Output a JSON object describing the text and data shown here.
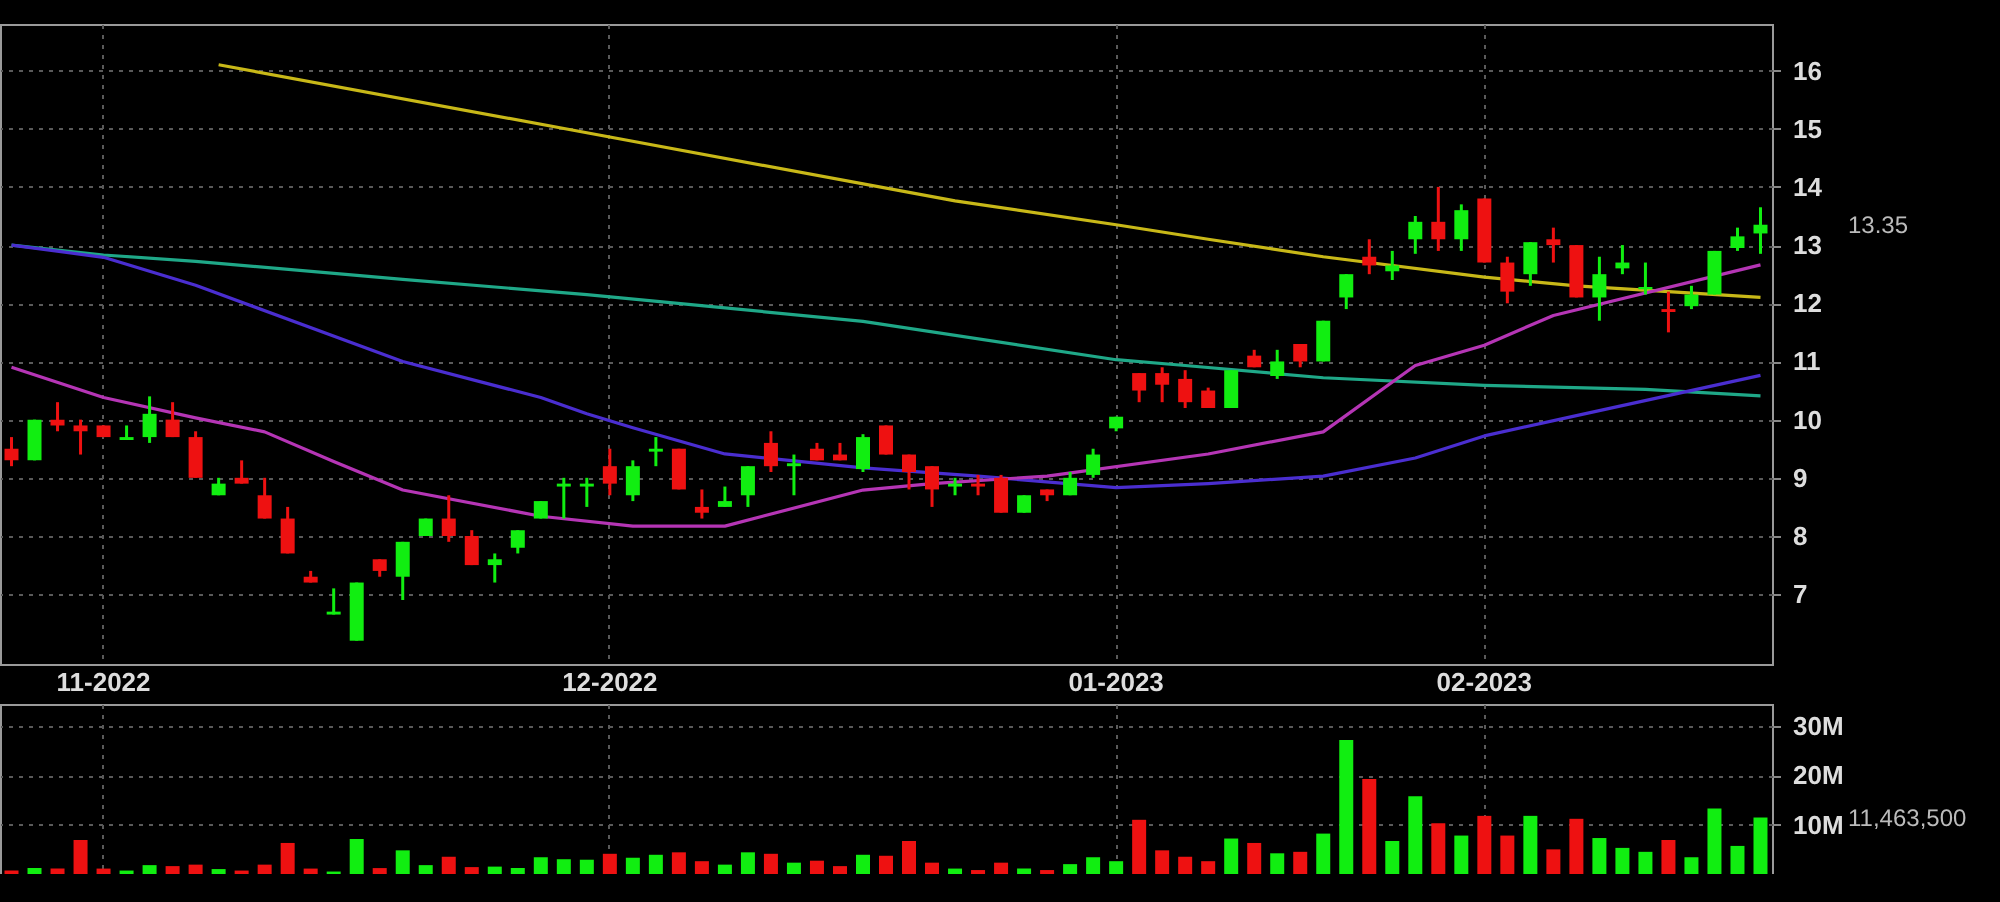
{
  "chart_data": [
    {
      "type": "candlestick",
      "categories": [
        null,
        null,
        null,
        null,
        "11-2022",
        null,
        null,
        null,
        null,
        null,
        null,
        null,
        null,
        null,
        null,
        null,
        null,
        null,
        null,
        null,
        null,
        null,
        null,
        null,
        null,
        null,
        "12-2022",
        null,
        null,
        null,
        null,
        null,
        null,
        null,
        null,
        null,
        null,
        null,
        null,
        null,
        null,
        null,
        null,
        null,
        null,
        null,
        null,
        null,
        "01-2023",
        null,
        null,
        null,
        null,
        null,
        null,
        null,
        null,
        null,
        null,
        null,
        null,
        null,
        null,
        null,
        "02-2023",
        null,
        null,
        null,
        null,
        null,
        null,
        null,
        null,
        null,
        null,
        null,
        null
      ],
      "ohlc": [
        [
          9.5,
          9.7,
          9.2,
          9.3
        ],
        [
          9.3,
          10.0,
          9.3,
          10.0
        ],
        [
          10.0,
          10.3,
          9.8,
          9.9
        ],
        [
          9.9,
          10.0,
          9.4,
          9.8
        ],
        [
          9.9,
          9.9,
          9.7,
          9.7
        ],
        [
          9.65,
          9.9,
          9.65,
          9.7
        ],
        [
          9.7,
          10.4,
          9.6,
          10.1
        ],
        [
          10.0,
          10.3,
          9.7,
          9.7
        ],
        [
          9.7,
          9.8,
          9.0,
          9.0
        ],
        [
          8.7,
          9.0,
          8.7,
          8.9
        ],
        [
          9.0,
          9.3,
          8.9,
          8.9
        ],
        [
          8.7,
          9.0,
          8.3,
          8.3
        ],
        [
          8.3,
          8.5,
          7.7,
          7.7
        ],
        [
          7.3,
          7.4,
          7.2,
          7.2
        ],
        [
          6.65,
          7.1,
          6.65,
          6.7
        ],
        [
          6.2,
          7.2,
          6.2,
          7.2
        ],
        [
          7.6,
          7.6,
          7.3,
          7.4
        ],
        [
          7.3,
          7.9,
          6.9,
          7.9
        ],
        [
          8.0,
          8.3,
          8.0,
          8.3
        ],
        [
          8.3,
          8.7,
          7.9,
          8.0
        ],
        [
          8.0,
          8.1,
          7.5,
          7.5
        ],
        [
          7.5,
          7.7,
          7.2,
          7.6
        ],
        [
          7.8,
          8.1,
          7.7,
          8.1
        ],
        [
          8.3,
          8.6,
          8.3,
          8.6
        ],
        [
          8.85,
          9.0,
          8.3,
          8.9
        ],
        [
          8.85,
          9.0,
          8.5,
          8.9
        ],
        [
          9.2,
          9.5,
          8.7,
          8.9
        ],
        [
          8.7,
          9.3,
          8.6,
          9.2
        ],
        [
          9.45,
          9.7,
          9.2,
          9.5
        ],
        [
          9.5,
          9.5,
          8.8,
          8.8
        ],
        [
          8.5,
          8.8,
          8.3,
          8.4
        ],
        [
          8.5,
          8.85,
          8.5,
          8.6
        ],
        [
          8.7,
          9.2,
          8.5,
          9.2
        ],
        [
          9.6,
          9.8,
          9.1,
          9.2
        ],
        [
          9.2,
          9.4,
          8.7,
          9.25
        ],
        [
          9.5,
          9.6,
          9.3,
          9.3
        ],
        [
          9.4,
          9.6,
          9.3,
          9.3
        ],
        [
          9.15,
          9.75,
          9.1,
          9.7
        ],
        [
          9.9,
          9.9,
          9.4,
          9.4
        ],
        [
          9.4,
          9.4,
          8.8,
          9.1
        ],
        [
          9.2,
          9.2,
          8.5,
          8.8
        ],
        [
          8.85,
          9.0,
          8.7,
          8.9
        ],
        [
          8.9,
          9.05,
          8.7,
          8.85
        ],
        [
          9.0,
          9.05,
          8.4,
          8.4
        ],
        [
          8.4,
          8.7,
          8.4,
          8.7
        ],
        [
          8.8,
          8.8,
          8.6,
          8.7
        ],
        [
          8.7,
          9.1,
          8.7,
          9.0
        ],
        [
          9.05,
          9.5,
          9.0,
          9.4
        ],
        [
          9.85,
          10.05,
          9.8,
          10.05
        ],
        [
          10.8,
          10.8,
          10.3,
          10.5
        ],
        [
          10.8,
          10.9,
          10.3,
          10.6
        ],
        [
          10.7,
          10.85,
          10.2,
          10.3
        ],
        [
          10.5,
          10.55,
          10.2,
          10.2
        ],
        [
          10.2,
          10.85,
          10.2,
          10.85
        ],
        [
          11.1,
          11.2,
          10.9,
          10.9
        ],
        [
          10.75,
          11.2,
          10.7,
          11.0
        ],
        [
          11.3,
          11.3,
          10.9,
          11.0
        ],
        [
          11.0,
          11.7,
          11.0,
          11.7
        ],
        [
          12.1,
          12.5,
          11.9,
          12.5
        ],
        [
          12.8,
          13.1,
          12.5,
          12.65
        ],
        [
          12.55,
          12.9,
          12.4,
          12.65
        ],
        [
          13.1,
          13.5,
          12.85,
          13.4
        ],
        [
          13.4,
          14.0,
          12.9,
          13.1
        ],
        [
          13.1,
          13.7,
          12.9,
          13.6
        ],
        [
          13.8,
          13.8,
          12.7,
          12.7
        ],
        [
          12.7,
          12.8,
          12.0,
          12.2
        ],
        [
          12.5,
          13.05,
          12.3,
          13.05
        ],
        [
          13.1,
          13.3,
          12.7,
          13.0
        ],
        [
          13.0,
          13.0,
          12.1,
          12.1
        ],
        [
          12.1,
          12.8,
          11.7,
          12.5
        ],
        [
          12.6,
          13.0,
          12.5,
          12.7
        ],
        [
          12.24,
          12.7,
          12.15,
          12.28
        ],
        [
          11.9,
          12.2,
          11.5,
          11.85
        ],
        [
          11.95,
          12.3,
          11.9,
          12.15
        ],
        [
          12.15,
          12.9,
          12.15,
          12.9
        ],
        [
          12.95,
          13.3,
          12.9,
          13.15
        ],
        [
          13.2,
          13.65,
          12.85,
          13.35
        ]
      ],
      "colors": [
        "#ee1111",
        "#11ee11",
        "#ee1111",
        "#ee1111",
        "#ee1111",
        "#11ee11",
        "#11ee11",
        "#ee1111",
        "#ee1111",
        "#11ee11",
        "#ee1111",
        "#ee1111",
        "#ee1111",
        "#ee1111",
        "#11ee11",
        "#11ee11",
        "#ee1111",
        "#11ee11",
        "#11ee11",
        "#ee1111",
        "#ee1111",
        "#11ee11",
        "#11ee11",
        "#11ee11",
        "#11ee11",
        "#11ee11",
        "#ee1111",
        "#11ee11",
        "#11ee11",
        "#ee1111",
        "#ee1111",
        "#11ee11",
        "#11ee11",
        "#ee1111",
        "#11ee11",
        "#ee1111",
        "#ee1111",
        "#11ee11",
        "#ee1111",
        "#ee1111",
        "#ee1111",
        "#11ee11",
        "#ee1111",
        "#ee1111",
        "#11ee11",
        "#ee1111",
        "#11ee11",
        "#11ee11",
        "#11ee11",
        "#ee1111",
        "#ee1111",
        "#ee1111",
        "#ee1111",
        "#11ee11",
        "#ee1111",
        "#11ee11",
        "#ee1111",
        "#11ee11",
        "#11ee11",
        "#ee1111",
        "#11ee11",
        "#11ee11",
        "#ee1111",
        "#11ee11",
        "#ee1111",
        "#ee1111",
        "#11ee11",
        "#ee1111",
        "#ee1111",
        "#11ee11",
        "#11ee11",
        "#11ee11",
        "#ee1111",
        "#11ee11",
        "#11ee11",
        "#11ee11",
        "#11ee11"
      ],
      "series": [
        {
          "type": "line",
          "color": "#c8b818",
          "values": [
            null,
            null,
            null,
            null,
            null,
            null,
            null,
            null,
            null,
            16.1,
            null,
            null,
            null,
            null,
            null,
            null,
            null,
            null,
            null,
            null,
            null,
            null,
            null,
            null,
            null,
            14.93,
            null,
            null,
            null,
            null,
            null,
            null,
            null,
            null,
            null,
            null,
            null,
            null,
            null,
            null,
            null,
            13.76,
            null,
            null,
            null,
            null,
            null,
            null,
            13.35,
            null,
            null,
            null,
            13.1,
            null,
            null,
            null,
            null,
            12.8,
            null,
            null,
            null,
            null,
            null,
            null,
            12.45,
            null,
            null,
            null,
            12.3,
            null,
            null,
            null,
            null,
            null,
            null,
            null,
            12.1
          ]
        },
        {
          "type": "line",
          "color": "#1fa888",
          "values": [
            13.0,
            null,
            null,
            null,
            12.83,
            null,
            null,
            null,
            12.72,
            null,
            null,
            null,
            null,
            null,
            null,
            null,
            null,
            12.41,
            null,
            null,
            null,
            null,
            null,
            null,
            null,
            12.15,
            null,
            null,
            null,
            null,
            null,
            null,
            null,
            null,
            null,
            null,
            null,
            11.69,
            null,
            null,
            null,
            null,
            null,
            null,
            null,
            null,
            null,
            null,
            11.03,
            null,
            null,
            10.93,
            null,
            null,
            null,
            null,
            null,
            10.72,
            null,
            null,
            null,
            null,
            null,
            null,
            10.59,
            null,
            null,
            null,
            null,
            null,
            null,
            10.52,
            null,
            null,
            null,
            null,
            10.41
          ]
        },
        {
          "type": "line",
          "color": "#4a2ed0",
          "values": [
            13.0,
            null,
            null,
            null,
            12.79,
            null,
            null,
            null,
            12.31,
            null,
            null,
            null,
            null,
            null,
            null,
            null,
            null,
            11.0,
            null,
            null,
            null,
            null,
            null,
            10.38,
            null,
            10.1,
            null,
            9.86,
            null,
            null,
            null,
            9.41,
            null,
            null,
            null,
            null,
            null,
            9.17,
            null,
            null,
            null,
            null,
            9.03,
            null,
            null,
            null,
            null,
            null,
            8.83,
            null,
            null,
            null,
            8.9,
            null,
            null,
            null,
            null,
            9.03,
            null,
            null,
            null,
            9.34,
            null,
            null,
            9.72,
            null,
            null,
            null,
            10.07,
            null,
            null,
            null,
            null,
            null,
            null,
            null,
            10.76
          ]
        },
        {
          "type": "line",
          "color": "#b535b5",
          "values": [
            10.9,
            null,
            null,
            null,
            10.38,
            null,
            null,
            null,
            10.03,
            null,
            null,
            9.79,
            null,
            null,
            9.28,
            null,
            null,
            8.79,
            null,
            null,
            null,
            null,
            null,
            8.34,
            null,
            null,
            null,
            8.17,
            null,
            null,
            null,
            8.17,
            null,
            null,
            null,
            null,
            null,
            8.79,
            null,
            null,
            8.9,
            null,
            null,
            null,
            null,
            9.03,
            null,
            null,
            null,
            null,
            null,
            null,
            9.41,
            null,
            null,
            null,
            null,
            9.79,
            null,
            null,
            null,
            10.93,
            null,
            null,
            11.28,
            null,
            null,
            11.79,
            null,
            null,
            null,
            null,
            null,
            null,
            null,
            null,
            12.66
          ]
        }
      ],
      "ylim": [
        5.8,
        16.8
      ],
      "yticks": [
        7,
        8,
        9,
        10,
        11,
        12,
        13,
        14,
        15,
        16
      ],
      "grid": true,
      "annotations": [
        "13.35"
      ]
    },
    {
      "type": "bar",
      "categories": [
        null,
        null,
        null,
        null,
        null,
        null,
        null,
        null,
        null,
        null,
        null,
        null,
        null,
        null,
        null,
        null,
        null,
        null,
        null,
        null,
        null,
        null,
        null,
        null,
        null,
        null,
        null,
        null,
        null,
        null,
        null,
        null,
        null,
        null,
        null,
        null,
        null,
        null,
        null,
        null,
        null,
        null,
        null,
        null,
        null,
        null,
        null,
        null,
        null,
        null,
        null,
        null,
        null,
        null,
        null,
        null,
        null,
        null,
        null,
        null,
        null,
        null,
        null,
        null,
        null,
        null,
        null,
        null,
        null,
        null,
        null,
        null,
        null,
        null,
        null,
        null,
        null
      ],
      "values": [
        700000,
        1200000,
        1100000,
        6900000,
        1100000,
        700000,
        1800000,
        1600000,
        1900000,
        1000000,
        700000,
        1900000,
        6300000,
        1100000,
        500000,
        7100000,
        1200000,
        4800000,
        1800000,
        3500000,
        1400000,
        1500000,
        1200000,
        3400000,
        3000000,
        2900000,
        4100000,
        3300000,
        3900000,
        4400000,
        2600000,
        1900000,
        4400000,
        4100000,
        2300000,
        2700000,
        1600000,
        3900000,
        3700000,
        6700000,
        2300000,
        1100000,
        800000,
        2300000,
        1100000,
        800000,
        2000000,
        3400000,
        2600000,
        11000000,
        4800000,
        3500000,
        2600000,
        7200000,
        6300000,
        4200000,
        4500000,
        8200000,
        27200000,
        19300000,
        6700000,
        15800000,
        10300000,
        7800000,
        11800000,
        7800000,
        11800000,
        5000000,
        11200000,
        7300000,
        5300000,
        4500000,
        6900000,
        3400000,
        13300000,
        5700000,
        11463500
      ],
      "colors": [
        "#ee1111",
        "#11ee11",
        "#ee1111",
        "#ee1111",
        "#ee1111",
        "#11ee11",
        "#11ee11",
        "#ee1111",
        "#ee1111",
        "#11ee11",
        "#ee1111",
        "#ee1111",
        "#ee1111",
        "#ee1111",
        "#11ee11",
        "#11ee11",
        "#ee1111",
        "#11ee11",
        "#11ee11",
        "#ee1111",
        "#ee1111",
        "#11ee11",
        "#11ee11",
        "#11ee11",
        "#11ee11",
        "#11ee11",
        "#ee1111",
        "#11ee11",
        "#11ee11",
        "#ee1111",
        "#ee1111",
        "#11ee11",
        "#11ee11",
        "#ee1111",
        "#11ee11",
        "#ee1111",
        "#ee1111",
        "#11ee11",
        "#ee1111",
        "#ee1111",
        "#ee1111",
        "#11ee11",
        "#ee1111",
        "#ee1111",
        "#11ee11",
        "#ee1111",
        "#11ee11",
        "#11ee11",
        "#11ee11",
        "#ee1111",
        "#ee1111",
        "#ee1111",
        "#ee1111",
        "#11ee11",
        "#ee1111",
        "#11ee11",
        "#ee1111",
        "#11ee11",
        "#11ee11",
        "#ee1111",
        "#11ee11",
        "#11ee11",
        "#ee1111",
        "#11ee11",
        "#ee1111",
        "#ee1111",
        "#11ee11",
        "#ee1111",
        "#ee1111",
        "#11ee11",
        "#11ee11",
        "#11ee11",
        "#ee1111",
        "#11ee11",
        "#11ee11",
        "#11ee11",
        "#11ee11"
      ],
      "ylim": [
        0,
        34500000
      ],
      "yticks": [
        {
          "value": 10000000,
          "label": "10M"
        },
        {
          "value": 20000000,
          "label": "20M"
        },
        {
          "value": 30000000,
          "label": "30M"
        }
      ],
      "grid": true,
      "tick_labels": "y",
      "annotations": [
        "11,463,500"
      ]
    }
  ]
}
